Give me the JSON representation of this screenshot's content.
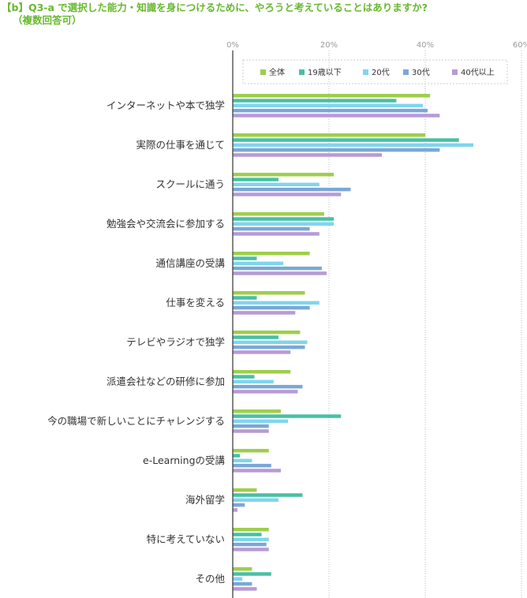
{
  "title": {
    "line1": "【b】Q3-a で選択した能力・知識を身につけるために、やろうと考えていることはありますか?",
    "line2": "（複数回答可）"
  },
  "colors": {
    "series": [
      "#9fce4b",
      "#48c0a4",
      "#7fd5ef",
      "#7ba7d7",
      "#b79ad6"
    ],
    "axis": "#333333",
    "grid": "#bbbbbb",
    "tick": "#9a9a9a"
  },
  "chart_data": {
    "type": "bar",
    "orientation": "horizontal",
    "title": "【b】Q3-a で選択した能力・知識を身につけるために、やろうと考えていることはありますか?（複数回答可）",
    "xlabel": "",
    "ylabel": "",
    "xlim": [
      0,
      60
    ],
    "ticks": [
      0,
      20,
      40,
      60
    ],
    "tick_labels": [
      "0%",
      "20%",
      "40%",
      "60%"
    ],
    "grid": true,
    "legend_position": "top-right",
    "categories": [
      "インターネットや本で独学",
      "実際の仕事を通じて",
      "スクールに通う",
      "勉強会や交流会に参加する",
      "通信講座の受講",
      "仕事を変える",
      "テレビやラジオで独学",
      "派遣会社などの研修に参加",
      "今の職場で新しいことにチャレンジする",
      "e-Learningの受講",
      "海外留学",
      "特に考えていない",
      "その他"
    ],
    "series": [
      {
        "name": "全体",
        "values": [
          41,
          40,
          21,
          19,
          16,
          15,
          14,
          12,
          10,
          7.5,
          5,
          7.5,
          4
        ]
      },
      {
        "name": "19歳以下",
        "values": [
          34,
          47,
          9.5,
          21,
          5,
          5,
          9.5,
          4.5,
          22.5,
          1.5,
          14.5,
          6,
          8
        ]
      },
      {
        "name": "20代",
        "values": [
          39.5,
          50,
          18,
          21,
          10.5,
          18,
          15.5,
          8.5,
          11.5,
          4,
          9.5,
          7.5,
          2
        ]
      },
      {
        "name": "30代",
        "values": [
          40.5,
          43,
          24.5,
          16,
          18.5,
          16,
          15,
          14.5,
          7.5,
          8,
          2.5,
          7,
          4
        ]
      },
      {
        "name": "40代以上",
        "values": [
          43,
          31,
          22.5,
          18,
          19.5,
          13,
          12,
          13.5,
          7.5,
          10,
          1,
          7.5,
          5
        ]
      }
    ]
  }
}
